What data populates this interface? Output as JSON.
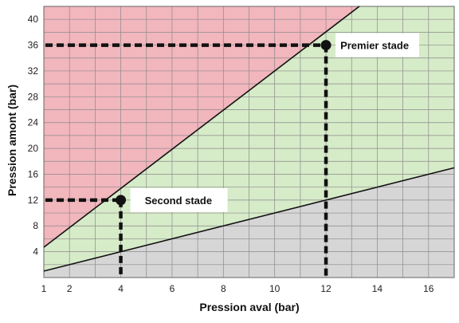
{
  "chart_data": {
    "type": "line",
    "xlabel": "Pression aval (bar)",
    "ylabel": "Pression amont (bar)",
    "xlim": [
      1,
      17
    ],
    "ylim": [
      0,
      42
    ],
    "xticks": [
      1,
      2,
      4,
      6,
      8,
      10,
      12,
      14,
      16
    ],
    "yticks": [
      4,
      8,
      12,
      16,
      20,
      24,
      28,
      32,
      36,
      40
    ],
    "grid": true,
    "regions": [
      {
        "name": "",
        "color": "#f2b6bd",
        "bounded_by": "above upper boundary"
      },
      {
        "name": "",
        "color": "#d6ebc8",
        "bounded_by": "between boundaries"
      },
      {
        "name": "",
        "color": "#d6d6d6",
        "bounded_by": "below lower boundary"
      }
    ],
    "series": [
      {
        "name": "",
        "x": [
          1,
          13.3
        ],
        "y": [
          4.7,
          42
        ]
      },
      {
        "name": "",
        "x": [
          1,
          17
        ],
        "y": [
          1,
          17
        ]
      }
    ],
    "points": [
      {
        "label": "Premier stade",
        "x": 12,
        "y": 36
      },
      {
        "label": "Second stade",
        "x": 4,
        "y": 12
      }
    ],
    "line_color": "#111111",
    "guide_color": "#111111"
  }
}
